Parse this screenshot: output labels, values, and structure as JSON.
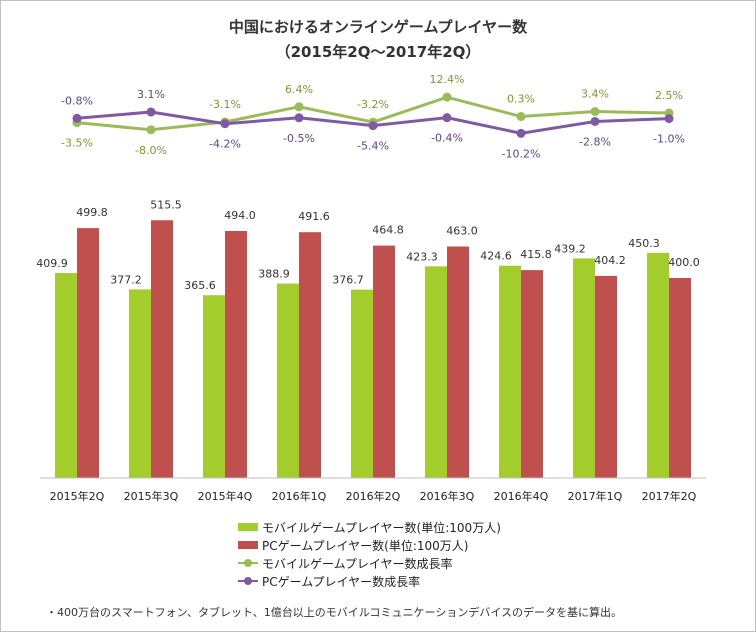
{
  "title": "中国におけるオンラインゲームプレイヤー数",
  "subtitle": "（2015年2Q～2017年2Q）",
  "footnote": "・400万台のスマートフォン、タブレット、1億台以上のモバイルコミュニケーションデバイスのデータを基に算出。",
  "colors": {
    "mobile_bar": "#a3cc2d",
    "pc_bar": "#c0504d",
    "mobile_line": "#9bbb59",
    "pc_line": "#7f5aa2",
    "axis": "#bfbfbf"
  },
  "legend": {
    "mobile_bar": "モバイルゲームプレイヤー数(単位:100万人)",
    "pc_bar": "PCゲームプレイヤー数(単位:100万人)",
    "mobile_line": "モバイルゲームプレイヤー数成長率",
    "pc_line": "PCゲームプレイヤー数成長率"
  },
  "chart_data": [
    {
      "type": "line",
      "categories": [
        "2015年2Q",
        "2015年3Q",
        "2015年4Q",
        "2016年1Q",
        "2016年2Q",
        "2016年3Q",
        "2016年4Q",
        "2017年1Q",
        "2017年2Q"
      ],
      "series": [
        {
          "name": "モバイルゲームプレイヤー数成長率",
          "values": [
            -3.5,
            -8.0,
            -3.1,
            6.4,
            -3.2,
            12.4,
            0.3,
            3.4,
            2.5
          ],
          "labels": [
            "-3.5%",
            "-8.0%",
            "-3.1%",
            "6.4%",
            "-3.2%",
            "12.4%",
            "0.3%",
            "3.4%",
            "2.5%"
          ]
        },
        {
          "name": "PCゲームプレイヤー数成長率",
          "values": [
            -0.8,
            3.1,
            -4.2,
            -0.5,
            -5.4,
            -0.4,
            -10.2,
            -2.8,
            -1.0
          ],
          "labels": [
            "-0.8%",
            "3.1%",
            "-4.2%",
            "-0.5%",
            "-5.4%",
            "-0.4%",
            "-10.2%",
            "-2.8%",
            "-1.0%"
          ]
        }
      ]
    },
    {
      "type": "bar",
      "categories": [
        "2015年2Q",
        "2015年3Q",
        "2015年4Q",
        "2016年1Q",
        "2016年2Q",
        "2016年3Q",
        "2016年4Q",
        "2017年1Q",
        "2017年2Q"
      ],
      "ylim": [
        0,
        520
      ],
      "series": [
        {
          "name": "モバイルゲームプレイヤー数(単位:100万人)",
          "values": [
            409.9,
            377.2,
            365.6,
            388.9,
            376.7,
            423.3,
            424.6,
            439.2,
            450.3
          ],
          "labels": [
            "409.9",
            "377.2",
            "365.6",
            "388.9",
            "376.7",
            "423.3",
            "424.6",
            "439.2",
            "450.3"
          ]
        },
        {
          "name": "PCゲームプレイヤー数(単位:100万人)",
          "values": [
            499.8,
            515.5,
            494.0,
            491.6,
            464.8,
            463.0,
            415.8,
            404.2,
            400.0
          ],
          "labels": [
            "499.8",
            "515.5",
            "494.0",
            "491.6",
            "464.8",
            "463.0",
            "415.8",
            "404.2",
            "400.0"
          ]
        }
      ]
    }
  ]
}
